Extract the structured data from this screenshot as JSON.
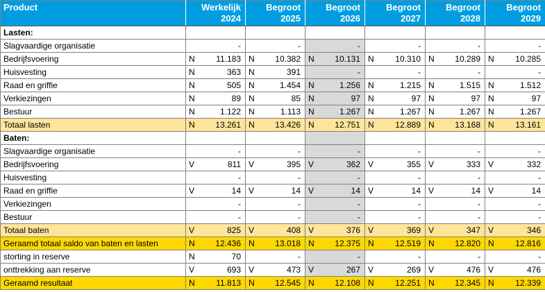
{
  "colors": {
    "header_bg": "#009EE0",
    "header_text": "#FFFFFF",
    "subtotal_bg": "#FFE59B",
    "total_bg": "#FFD800",
    "shaded_col_bg": "#D9D9D9",
    "grid_border": "#808080",
    "header_bottom": "#595959",
    "text": "#000000"
  },
  "table": {
    "product_header": "Product",
    "columns": [
      {
        "label": "Werkelijk",
        "year": "2024"
      },
      {
        "label": "Begroot",
        "year": "2025"
      },
      {
        "label": "Begroot",
        "year": "2026"
      },
      {
        "label": "Begroot",
        "year": "2027"
      },
      {
        "label": "Begroot",
        "year": "2028"
      },
      {
        "label": "Begroot",
        "year": "2029"
      }
    ],
    "rows": [
      {
        "label": "Lasten:",
        "bold": true,
        "style": "normal",
        "shade_2026": false,
        "cells": [
          {
            "p": "",
            "v": ""
          },
          {
            "p": "",
            "v": ""
          },
          {
            "p": "",
            "v": ""
          },
          {
            "p": "",
            "v": ""
          },
          {
            "p": "",
            "v": ""
          },
          {
            "p": "",
            "v": ""
          }
        ]
      },
      {
        "label": "Slagvaardige organisatie",
        "bold": false,
        "style": "normal",
        "shade_2026": true,
        "cells": [
          {
            "p": "",
            "v": "-"
          },
          {
            "p": "",
            "v": "-"
          },
          {
            "p": "",
            "v": "-"
          },
          {
            "p": "",
            "v": "-"
          },
          {
            "p": "",
            "v": "-"
          },
          {
            "p": "",
            "v": "-"
          }
        ]
      },
      {
        "label": "Bedrijfsvoering",
        "bold": false,
        "style": "normal",
        "shade_2026": true,
        "cells": [
          {
            "p": "N",
            "v": "11.183"
          },
          {
            "p": "N",
            "v": "10.382"
          },
          {
            "p": "N",
            "v": "10.131"
          },
          {
            "p": "N",
            "v": "10.310"
          },
          {
            "p": "N",
            "v": "10.289"
          },
          {
            "p": "N",
            "v": "10.285"
          }
        ]
      },
      {
        "label": "Huisvesting",
        "bold": false,
        "style": "normal",
        "shade_2026": true,
        "cells": [
          {
            "p": "N",
            "v": "363"
          },
          {
            "p": "N",
            "v": "391"
          },
          {
            "p": "",
            "v": "-"
          },
          {
            "p": "",
            "v": "-"
          },
          {
            "p": "",
            "v": "-"
          },
          {
            "p": "",
            "v": "-"
          }
        ]
      },
      {
        "label": "Raad en griffie",
        "bold": false,
        "style": "normal",
        "shade_2026": true,
        "cells": [
          {
            "p": "N",
            "v": "505"
          },
          {
            "p": "N",
            "v": "1.454"
          },
          {
            "p": "N",
            "v": "1.256"
          },
          {
            "p": "N",
            "v": "1.215"
          },
          {
            "p": "N",
            "v": "1.515"
          },
          {
            "p": "N",
            "v": "1.512"
          }
        ]
      },
      {
        "label": "Verkiezingen",
        "bold": false,
        "style": "normal",
        "shade_2026": true,
        "cells": [
          {
            "p": "N",
            "v": "89"
          },
          {
            "p": "N",
            "v": "85"
          },
          {
            "p": "N",
            "v": "97"
          },
          {
            "p": "N",
            "v": "97"
          },
          {
            "p": "N",
            "v": "97"
          },
          {
            "p": "N",
            "v": "97"
          }
        ]
      },
      {
        "label": "Bestuur",
        "bold": false,
        "style": "normal",
        "shade_2026": true,
        "cells": [
          {
            "p": "N",
            "v": "1.122"
          },
          {
            "p": "N",
            "v": "1.113"
          },
          {
            "p": "N",
            "v": "1.267"
          },
          {
            "p": "N",
            "v": "1.267"
          },
          {
            "p": "N",
            "v": "1.267"
          },
          {
            "p": "N",
            "v": "1.267"
          }
        ]
      },
      {
        "label": "Totaal lasten",
        "bold": false,
        "style": "subtotal",
        "shade_2026": false,
        "cells": [
          {
            "p": "N",
            "v": "13.261"
          },
          {
            "p": "N",
            "v": "13.426"
          },
          {
            "p": "N",
            "v": "12.751"
          },
          {
            "p": "N",
            "v": "12.889"
          },
          {
            "p": "N",
            "v": "13.168"
          },
          {
            "p": "N",
            "v": "13.161"
          }
        ]
      },
      {
        "label": "Baten:",
        "bold": true,
        "style": "normal",
        "shade_2026": true,
        "cells": [
          {
            "p": "",
            "v": ""
          },
          {
            "p": "",
            "v": ""
          },
          {
            "p": "",
            "v": ""
          },
          {
            "p": "",
            "v": ""
          },
          {
            "p": "",
            "v": ""
          },
          {
            "p": "",
            "v": ""
          }
        ]
      },
      {
        "label": "Slagvaardige organisatie",
        "bold": false,
        "style": "normal",
        "shade_2026": true,
        "cells": [
          {
            "p": "",
            "v": "-"
          },
          {
            "p": "",
            "v": "-"
          },
          {
            "p": "",
            "v": "-"
          },
          {
            "p": "",
            "v": "-"
          },
          {
            "p": "",
            "v": "-"
          },
          {
            "p": "",
            "v": "-"
          }
        ]
      },
      {
        "label": "Bedrijfsvoering",
        "bold": false,
        "style": "normal",
        "shade_2026": true,
        "cells": [
          {
            "p": "V",
            "v": "811"
          },
          {
            "p": "V",
            "v": "395"
          },
          {
            "p": "V",
            "v": "362"
          },
          {
            "p": "V",
            "v": "355"
          },
          {
            "p": "V",
            "v": "333"
          },
          {
            "p": "V",
            "v": "332"
          }
        ]
      },
      {
        "label": "Huisvesting",
        "bold": false,
        "style": "normal",
        "shade_2026": true,
        "cells": [
          {
            "p": "",
            "v": "-"
          },
          {
            "p": "",
            "v": "-"
          },
          {
            "p": "",
            "v": "-"
          },
          {
            "p": "",
            "v": "-"
          },
          {
            "p": "",
            "v": "-"
          },
          {
            "p": "",
            "v": "-"
          }
        ]
      },
      {
        "label": "Raad en griffie",
        "bold": false,
        "style": "normal",
        "shade_2026": true,
        "cells": [
          {
            "p": "V",
            "v": "14"
          },
          {
            "p": "V",
            "v": "14"
          },
          {
            "p": "V",
            "v": "14"
          },
          {
            "p": "V",
            "v": "14"
          },
          {
            "p": "V",
            "v": "14"
          },
          {
            "p": "V",
            "v": "14"
          }
        ]
      },
      {
        "label": "Verkiezingen",
        "bold": false,
        "style": "normal",
        "shade_2026": true,
        "cells": [
          {
            "p": "",
            "v": "-"
          },
          {
            "p": "",
            "v": "-"
          },
          {
            "p": "",
            "v": "-"
          },
          {
            "p": "",
            "v": "-"
          },
          {
            "p": "",
            "v": "-"
          },
          {
            "p": "",
            "v": "-"
          }
        ]
      },
      {
        "label": "Bestuur",
        "bold": false,
        "style": "normal",
        "shade_2026": true,
        "cells": [
          {
            "p": "",
            "v": "-"
          },
          {
            "p": "",
            "v": "-"
          },
          {
            "p": "",
            "v": "-"
          },
          {
            "p": "",
            "v": "-"
          },
          {
            "p": "",
            "v": "-"
          },
          {
            "p": "",
            "v": "-"
          }
        ]
      },
      {
        "label": "Totaal baten",
        "bold": false,
        "style": "subtotal",
        "shade_2026": false,
        "cells": [
          {
            "p": "V",
            "v": "825"
          },
          {
            "p": "V",
            "v": "408"
          },
          {
            "p": "V",
            "v": "376"
          },
          {
            "p": "V",
            "v": "369"
          },
          {
            "p": "V",
            "v": "347"
          },
          {
            "p": "V",
            "v": "346"
          }
        ]
      },
      {
        "label": "Geraamd totaal saldo van baten en lasten",
        "bold": false,
        "style": "total",
        "shade_2026": false,
        "cells": [
          {
            "p": "N",
            "v": "12.436"
          },
          {
            "p": "N",
            "v": "13.018"
          },
          {
            "p": "N",
            "v": "12.375"
          },
          {
            "p": "N",
            "v": "12.519"
          },
          {
            "p": "N",
            "v": "12.820"
          },
          {
            "p": "N",
            "v": "12.816"
          }
        ]
      },
      {
        "label": "storting in reserve",
        "bold": false,
        "style": "normal",
        "shade_2026": true,
        "cells": [
          {
            "p": "N",
            "v": "70"
          },
          {
            "p": "",
            "v": "-"
          },
          {
            "p": "",
            "v": "-"
          },
          {
            "p": "",
            "v": "-"
          },
          {
            "p": "",
            "v": "-"
          },
          {
            "p": "",
            "v": "-"
          }
        ]
      },
      {
        "label": "onttrekking aan reserve",
        "bold": false,
        "style": "normal",
        "shade_2026": true,
        "cells": [
          {
            "p": "V",
            "v": "693"
          },
          {
            "p": "V",
            "v": "473"
          },
          {
            "p": "V",
            "v": "267"
          },
          {
            "p": "V",
            "v": "269"
          },
          {
            "p": "V",
            "v": "476"
          },
          {
            "p": "V",
            "v": "476"
          }
        ]
      },
      {
        "label": "Geraamd resultaat",
        "bold": false,
        "style": "total",
        "shade_2026": false,
        "cells": [
          {
            "p": "N",
            "v": "11.813"
          },
          {
            "p": "N",
            "v": "12.545"
          },
          {
            "p": "N",
            "v": "12.108"
          },
          {
            "p": "N",
            "v": "12.251"
          },
          {
            "p": "N",
            "v": "12.345"
          },
          {
            "p": "N",
            "v": "12.339"
          }
        ]
      }
    ]
  }
}
